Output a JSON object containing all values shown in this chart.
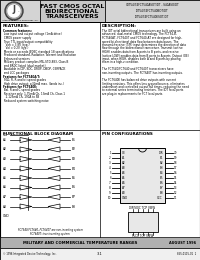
{
  "bg_color": "#ffffff",
  "border_color": "#000000",
  "title_line1": "FAST CMOS OCTAL",
  "title_line2": "BIDIRECTIONAL",
  "title_line3": "TRANSCEIVERS",
  "part_numbers": "IDT54/74FCT540ASOT/DT - S40ASO/DT\nIDT54/74FCT540BOT/DT\nIDT54/74FCT540ESOT/DT",
  "features_title": "FEATURES:",
  "desc_title": "DESCRIPTION:",
  "func_block_title": "FUNCTIONAL BLOCK DIAGRAM",
  "pin_config_title": "PIN CONFIGURATIONS",
  "bottom_bar_text": "MILITARY AND COMMERCIAL TEMPERATURE RANGES",
  "bottom_right_text": "AUGUST 1996",
  "company_text": "Integrated Device Technology, Inc.",
  "copyright_text": "© 1996 Integrated Device Technology, Inc.",
  "page_number": "3-1",
  "doc_number": "855-0115-01\n1",
  "header_bg": "#d4d4d4",
  "header_title_bg": "#c8c8c8",
  "bottom_bar_bg": "#b0b0b0",
  "features_lines": [
    "Common features:",
    " Low input and output voltage (1mA drive)",
    " CMOS power supply",
    " True TTL input/output compatibility",
    "   Voh = 3.8V (typ.)",
    "   Vol = 0.2V (typ.)",
    " Meets or exceeds JEDEC standard 18 specifications",
    " Produced standard, Radiation Tolerant and Radiation",
    " Enhanced versions",
    " Military product complies MIL-STD-883, Class B",
    " and BRDC listed (dual market)",
    " Available in DIP, SDC, DROP, DBOP, CERPACK",
    " and LCC packages",
    "Features for FCT540A/T:",
    " 50Ω, R, R and tri-speed grades",
    " High drive output: ±32mA max. (lands inc.)",
    "Features for FCT640E:",
    " Bal. R and C speed grades",
    " Receiver only: 1.75mA Ch, 13mA Ch, Class 1",
    "   2.125mA Ch, 190A to 5B",
    " Reduced system switching noise"
  ],
  "desc_lines": [
    "The IDT octal bidirectional transceivers are built using an",
    "advanced, dual-metal CMOS technology. The FCT54-B,",
    "FCT540AT, FCT640T and FCT640-AT are designed for high-",
    "speed bi-directional data flow between data buses. The",
    "transmit/receive (T/R) input determines the direction of data",
    "flow through the bidirectional transceiver. Transmit (active",
    "HIGH) enables data from A ports to B ports, and receive",
    "(active LOW) enables data from B ports to A ports. Output (OE)",
    "input, when HIGH, disables both A and B ports by placing",
    "them in a high-z condition.",
    "",
    "The FCT540/FCT640 and FCT640T transceivers have",
    "non-inverting outputs. The FCT640T has inverting outputs.",
    "",
    "The FCT640E has balanced drive outputs with current",
    "limiting resistors. This offers less ground bounce, eliminates",
    "undershoot and controlled output fall times, reducing the need",
    "to external series terminating resistors. The IDT focal ports",
    "are plug-in replacements for FCT local parts."
  ],
  "left_pins": [
    "OE",
    "A1",
    "A2",
    "A3",
    "A4",
    "A5",
    "A6",
    "A7",
    "A8",
    "GND"
  ],
  "right_pins": [
    "VCC",
    "B8",
    "B7",
    "B6",
    "B5",
    "B4",
    "B3",
    "B2",
    "B1",
    "DIR"
  ],
  "note_lines": [
    "FCT540/FCT640, FCT640T are non-inverting system",
    "FCT640T: true inverting system"
  ]
}
